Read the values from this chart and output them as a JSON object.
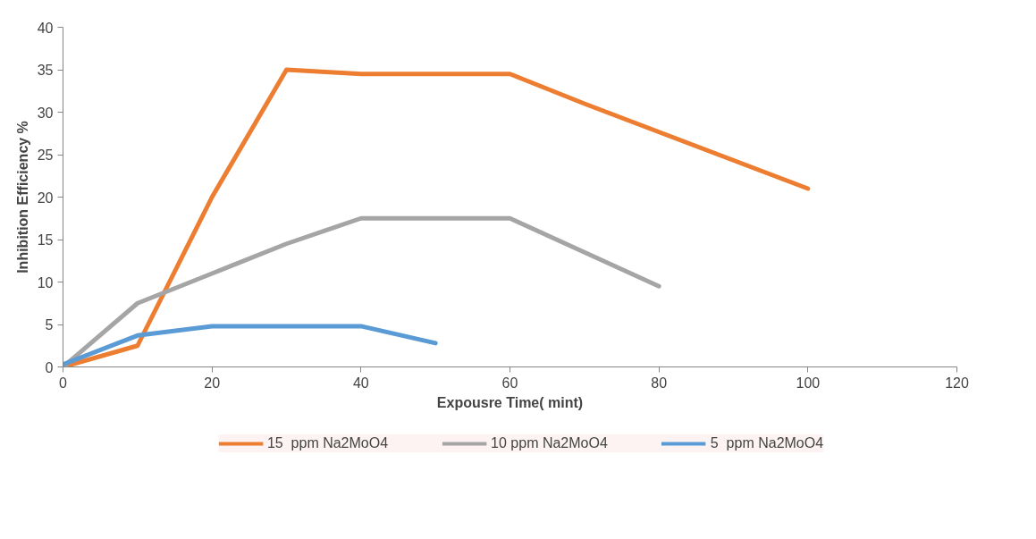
{
  "chart_data": {
    "type": "line",
    "xlabel": "Expousre Time( mint)",
    "ylabel": "Inhibition Efficiency %",
    "xlim": [
      0,
      120
    ],
    "xticks": [
      0,
      20,
      40,
      60,
      80,
      100,
      120
    ],
    "ylim": [
      0,
      40
    ],
    "yticks": [
      0,
      5,
      10,
      15,
      20,
      25,
      30,
      35,
      40
    ],
    "grid": false,
    "legend": "bottom",
    "marker": "none",
    "line_style": "solid",
    "series": [
      {
        "name": "15  ppm Na2MoO4",
        "color": "#ed7d31",
        "x": [
          0,
          10,
          20,
          30,
          40,
          50,
          60,
          70,
          100
        ],
        "values": [
          0,
          2.5,
          20,
          35,
          34.5,
          34.5,
          34.5,
          31,
          21
        ]
      },
      {
        "name": "10 ppm Na2MoO4",
        "color": "#a5a5a5",
        "x": [
          0,
          10,
          20,
          30,
          40,
          50,
          60,
          70,
          80
        ],
        "values": [
          0,
          7.5,
          11,
          14.5,
          17.5,
          17.5,
          17.5,
          13.5,
          9.5
        ]
      },
      {
        "name": "5  ppm Na2MoO4",
        "color": "#5b9bd5",
        "x": [
          0,
          10,
          20,
          30,
          40,
          50
        ],
        "values": [
          0.3,
          3.7,
          4.8,
          4.8,
          4.8,
          2.8
        ]
      }
    ]
  }
}
